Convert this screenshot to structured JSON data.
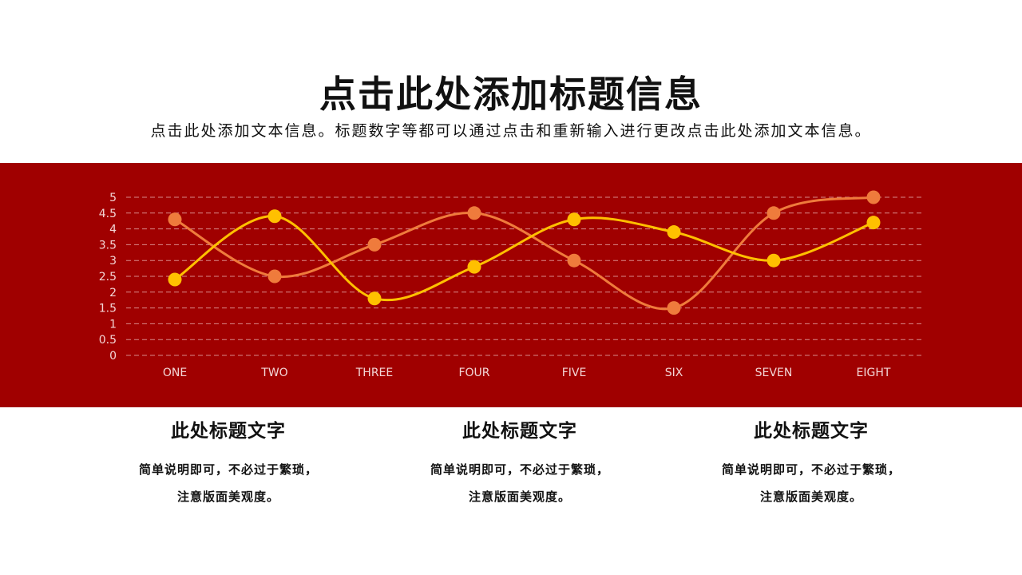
{
  "header": {
    "title": "点击此处添加标题信息",
    "subtitle": "点击此处添加文本信息。标题数字等都可以通过点击和重新输入进行更改点击此处添加文本信息。"
  },
  "colors": {
    "band": "#a00000",
    "series_orange": "#ef7b3c",
    "series_yellow": "#ffc000",
    "gridline": "#d98a8a",
    "tick_text": "#f3d6d6"
  },
  "chart_data": {
    "type": "line",
    "categories": [
      "ONE",
      "TWO",
      "THREE",
      "FOUR",
      "FIVE",
      "SIX",
      "SEVEN",
      "EIGHT"
    ],
    "series": [
      {
        "values": [
          4.3,
          2.5,
          3.5,
          4.5,
          3.0,
          1.5,
          4.5,
          5.0
        ]
      },
      {
        "values": [
          2.4,
          4.4,
          1.8,
          2.8,
          4.3,
          3.9,
          3.0,
          4.2
        ]
      }
    ],
    "yticks": [
      "0",
      "0.5",
      "1",
      "1.5",
      "2",
      "2.5",
      "3",
      "3.5",
      "4",
      "4.5",
      "5"
    ],
    "ylim": [
      0,
      5
    ],
    "grid": true,
    "smooth": true
  },
  "cards": [
    {
      "title": "此处标题文字",
      "desc_line1": "简单说明即可，不必过于繁琐，",
      "desc_line2": "注意版面美观度。"
    },
    {
      "title": "此处标题文字",
      "desc_line1": "简单说明即可，不必过于繁琐，",
      "desc_line2": "注意版面美观度。"
    },
    {
      "title": "此处标题文字",
      "desc_line1": "简单说明即可，不必过于繁琐，",
      "desc_line2": "注意版面美观度。"
    }
  ]
}
